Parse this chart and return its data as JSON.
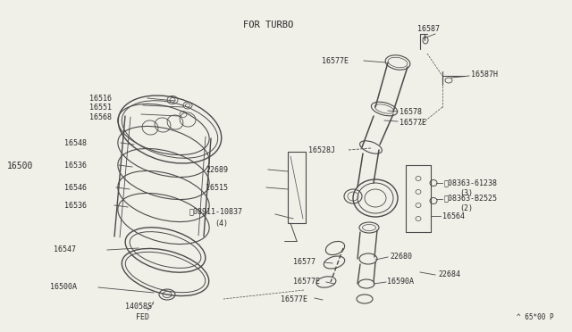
{
  "bg_color": "#f0efe8",
  "line_color": "#4a4a4a",
  "text_color": "#2a2a2a",
  "title": "FOR TURBO",
  "footer": "^ 65*00 P",
  "part_label": "16500"
}
